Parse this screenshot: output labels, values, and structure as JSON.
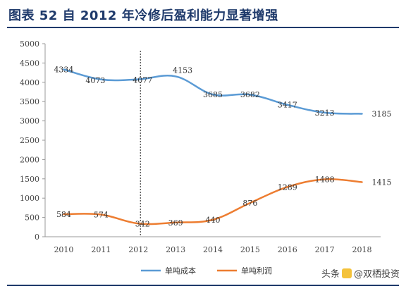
{
  "header": {
    "title": "图表 52  自 2012 年冷修后盈利能力显著增强"
  },
  "watermark": {
    "prefix": "头条",
    "handle": "@双栖投资"
  },
  "colors": {
    "title": "#1f3a6b",
    "series_cost": "#5b9bd5",
    "series_profit": "#ed7d31",
    "axis": "#9a9a9a"
  },
  "chart_data": {
    "type": "line",
    "title": "",
    "xlabel": "",
    "ylabel": "",
    "x": [
      "2010",
      "2011",
      "2012",
      "2013",
      "2014",
      "2015",
      "2016",
      "2017",
      "2018"
    ],
    "ylim": [
      0,
      5000
    ],
    "yticks": [
      0,
      500,
      1000,
      1500,
      2000,
      2500,
      3000,
      3500,
      4000,
      4500,
      5000
    ],
    "grid": false,
    "legend": "bottom",
    "vertical_marker": {
      "x": "2012",
      "style": "dotted"
    },
    "series": [
      {
        "name": "单吨成本",
        "color": "#5b9bd5",
        "values": [
          4334,
          4073,
          4077,
          4153,
          3685,
          3682,
          3417,
          3213,
          3185
        ]
      },
      {
        "name": "单吨利润",
        "color": "#ed7d31",
        "values": [
          584,
          574,
          342,
          369,
          440,
          876,
          1289,
          1488,
          1415
        ]
      }
    ]
  }
}
